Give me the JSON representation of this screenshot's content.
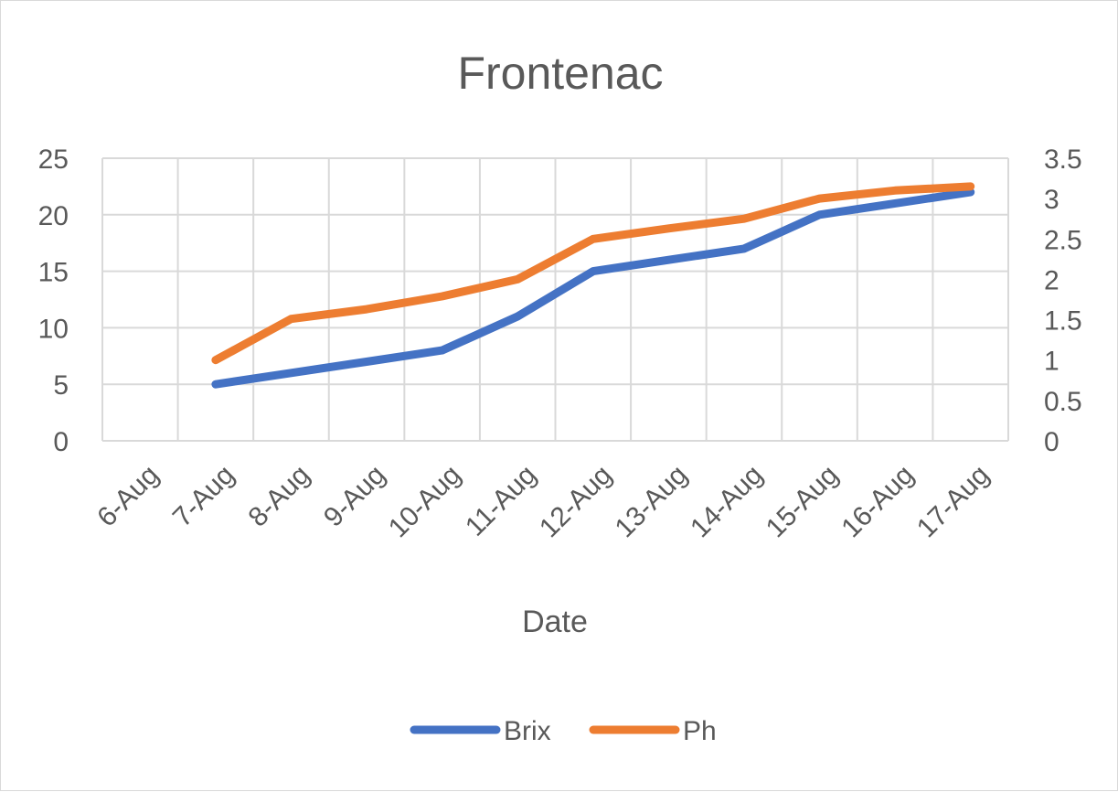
{
  "chart_data": {
    "type": "line",
    "title": "Frontenac",
    "xlabel": "Date",
    "ylabel": "",
    "y2label": "",
    "categories": [
      "6-Aug",
      "7-Aug",
      "8-Aug",
      "9-Aug",
      "10-Aug",
      "11-Aug",
      "12-Aug",
      "13-Aug",
      "14-Aug",
      "15-Aug",
      "16-Aug",
      "17-Aug"
    ],
    "ylim": [
      0,
      25
    ],
    "y_ticks": [
      "0",
      "5",
      "10",
      "15",
      "20",
      "25"
    ],
    "y2lim": [
      0,
      3.5
    ],
    "y2_ticks": [
      "0",
      "0.5",
      "1",
      "1.5",
      "2",
      "2.5",
      "3",
      "3.5"
    ],
    "grid": true,
    "legend_position": "bottom",
    "series": [
      {
        "name": "Brix",
        "axis": "primary",
        "color": "#4472c4",
        "x": [
          "7-Aug",
          "8-Aug",
          "9-Aug",
          "10-Aug",
          "11-Aug",
          "12-Aug",
          "13-Aug",
          "14-Aug",
          "15-Aug",
          "16-Aug",
          "17-Aug"
        ],
        "values": [
          5,
          6,
          7,
          8,
          11,
          15,
          16,
          17,
          20,
          21,
          22
        ]
      },
      {
        "name": "Ph",
        "axis": "secondary",
        "color": "#ed7d31",
        "x": [
          "7-Aug",
          "8-Aug",
          "9-Aug",
          "10-Aug",
          "11-Aug",
          "12-Aug",
          "13-Aug",
          "14-Aug",
          "15-Aug",
          "16-Aug",
          "17-Aug"
        ],
        "values": [
          1.0,
          1.51,
          1.63,
          1.79,
          2.0,
          2.5,
          2.63,
          2.75,
          3.0,
          3.1,
          3.15
        ]
      }
    ]
  }
}
